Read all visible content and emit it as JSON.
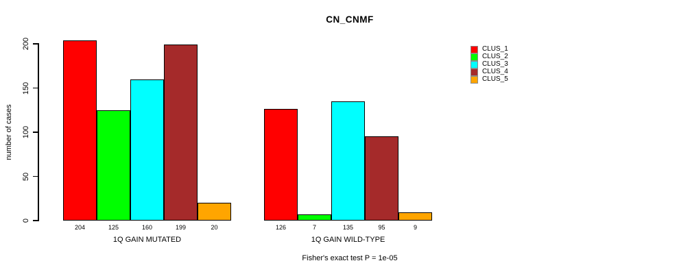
{
  "chart_data": {
    "type": "bar",
    "title": "CN_CNMF",
    "ylabel": "number of cases",
    "xlabel": "",
    "ylim": [
      0,
      200
    ],
    "yticks": [
      0,
      50,
      100,
      150,
      200
    ],
    "grid": false,
    "legend_position": "right-outside",
    "legend": [
      "CLUS_1",
      "CLUS_2",
      "CLUS_3",
      "CLUS_4",
      "CLUS_5"
    ],
    "colors": [
      "#FF0000",
      "#00FF00",
      "#00FFFF",
      "#A52A2A",
      "#FFA500"
    ],
    "groups": [
      {
        "label": "1Q GAIN MUTATED",
        "values": [
          204,
          125,
          160,
          199,
          20
        ]
      },
      {
        "label": "1Q GAIN WILD-TYPE",
        "values": [
          126,
          7,
          135,
          95,
          9
        ]
      }
    ],
    "bar_value_labels_shown": true,
    "annotation": "Fisher's exact test P = 1e-05"
  }
}
